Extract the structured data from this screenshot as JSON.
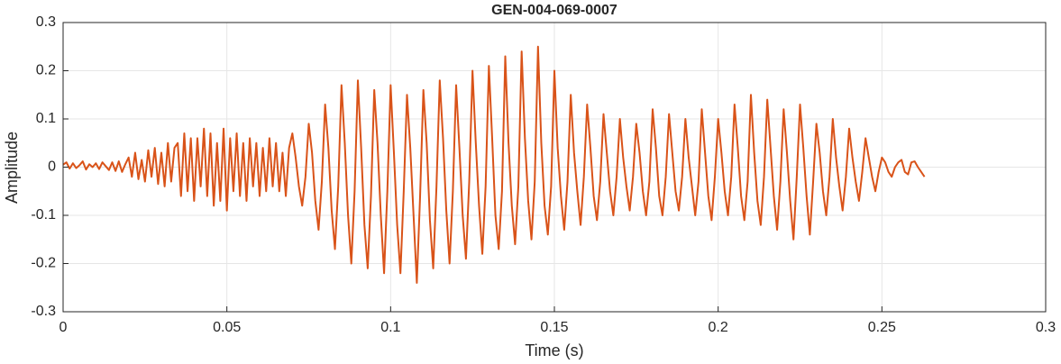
{
  "chart_data": {
    "type": "line",
    "title": "GEN-004-069-0007",
    "xlabel": "Time (s)",
    "ylabel": "Amplitude",
    "xlim": [
      0,
      0.3
    ],
    "xticks": [
      0,
      0.05,
      0.1,
      0.15,
      0.2,
      0.25,
      0.3
    ],
    "ylim": [
      -0.3,
      0.3
    ],
    "yticks": [
      -0.3,
      -0.2,
      -0.1,
      0,
      0.1,
      0.2,
      0.3
    ],
    "grid": true,
    "series": [
      {
        "color": "#d95319",
        "x": [
          0,
          0.001,
          0.002,
          0.003,
          0.004,
          0.005,
          0.006,
          0.007,
          0.008,
          0.009,
          0.01,
          0.011,
          0.012,
          0.013,
          0.014,
          0.015,
          0.016,
          0.017,
          0.018,
          0.019,
          0.02,
          0.021,
          0.022,
          0.023,
          0.024,
          0.025,
          0.026,
          0.027,
          0.028,
          0.029,
          0.03,
          0.031,
          0.032,
          0.033,
          0.034,
          0.035,
          0.036,
          0.037,
          0.038,
          0.039,
          0.04,
          0.041,
          0.042,
          0.043,
          0.044,
          0.045,
          0.046,
          0.047,
          0.048,
          0.049,
          0.05,
          0.051,
          0.052,
          0.053,
          0.054,
          0.055,
          0.056,
          0.057,
          0.058,
          0.059,
          0.06,
          0.061,
          0.062,
          0.063,
          0.064,
          0.065,
          0.066,
          0.067,
          0.068,
          0.069,
          0.07,
          0.071,
          0.072,
          0.073,
          0.074,
          0.075,
          0.076,
          0.077,
          0.078,
          0.079,
          0.08,
          0.081,
          0.082,
          0.083,
          0.084,
          0.085,
          0.086,
          0.087,
          0.088,
          0.089,
          0.09,
          0.091,
          0.092,
          0.093,
          0.094,
          0.095,
          0.096,
          0.097,
          0.098,
          0.099,
          0.1,
          0.101,
          0.102,
          0.103,
          0.104,
          0.105,
          0.106,
          0.107,
          0.108,
          0.109,
          0.11,
          0.111,
          0.112,
          0.113,
          0.114,
          0.115,
          0.116,
          0.117,
          0.118,
          0.119,
          0.12,
          0.121,
          0.122,
          0.123,
          0.124,
          0.125,
          0.126,
          0.127,
          0.128,
          0.129,
          0.13,
          0.131,
          0.132,
          0.133,
          0.134,
          0.135,
          0.136,
          0.137,
          0.138,
          0.139,
          0.14,
          0.141,
          0.142,
          0.143,
          0.144,
          0.145,
          0.146,
          0.147,
          0.148,
          0.149,
          0.15,
          0.151,
          0.152,
          0.153,
          0.154,
          0.155,
          0.156,
          0.157,
          0.158,
          0.159,
          0.16,
          0.161,
          0.162,
          0.163,
          0.164,
          0.165,
          0.166,
          0.167,
          0.168,
          0.169,
          0.17,
          0.171,
          0.172,
          0.173,
          0.174,
          0.175,
          0.176,
          0.177,
          0.178,
          0.179,
          0.18,
          0.181,
          0.182,
          0.183,
          0.184,
          0.185,
          0.186,
          0.187,
          0.188,
          0.189,
          0.19,
          0.191,
          0.192,
          0.193,
          0.194,
          0.195,
          0.196,
          0.197,
          0.198,
          0.199,
          0.2,
          0.201,
          0.202,
          0.203,
          0.204,
          0.205,
          0.206,
          0.207,
          0.208,
          0.209,
          0.21,
          0.211,
          0.212,
          0.213,
          0.214,
          0.215,
          0.216,
          0.217,
          0.218,
          0.219,
          0.22,
          0.221,
          0.222,
          0.223,
          0.224,
          0.225,
          0.226,
          0.227,
          0.228,
          0.229,
          0.23,
          0.231,
          0.232,
          0.233,
          0.234,
          0.235,
          0.236,
          0.237,
          0.238,
          0.239,
          0.24,
          0.241,
          0.242,
          0.243,
          0.244,
          0.245,
          0.246,
          0.247,
          0.248,
          0.249,
          0.25,
          0.251,
          0.252,
          0.253,
          0.254,
          0.255,
          0.256,
          0.257,
          0.258,
          0.259,
          0.26,
          0.261,
          0.262,
          0.263
        ],
        "values": [
          0.005,
          0.01,
          -0.003,
          0.008,
          -0.002,
          0.004,
          0.012,
          -0.005,
          0.006,
          0.0,
          0.008,
          -0.004,
          0.01,
          0.002,
          -0.006,
          0.01,
          -0.008,
          0.012,
          -0.01,
          0.006,
          0.02,
          -0.02,
          0.03,
          -0.025,
          0.015,
          -0.03,
          0.035,
          -0.02,
          0.04,
          -0.035,
          0.03,
          -0.04,
          0.05,
          -0.03,
          0.04,
          0.05,
          -0.06,
          0.07,
          -0.05,
          0.06,
          -0.07,
          0.06,
          -0.04,
          0.08,
          -0.06,
          0.07,
          -0.08,
          0.05,
          -0.07,
          0.08,
          -0.09,
          0.06,
          -0.05,
          0.07,
          -0.06,
          0.05,
          -0.07,
          0.06,
          -0.04,
          0.05,
          -0.06,
          0.04,
          -0.05,
          0.06,
          -0.04,
          0.05,
          -0.05,
          0.03,
          -0.06,
          0.04,
          0.07,
          0.02,
          -0.04,
          -0.08,
          -0.02,
          0.09,
          0.03,
          -0.07,
          -0.13,
          -0.03,
          0.13,
          0.04,
          -0.09,
          -0.17,
          -0.04,
          0.17,
          0.05,
          -0.1,
          -0.2,
          -0.05,
          0.18,
          0.04,
          -0.12,
          -0.21,
          -0.06,
          0.16,
          0.05,
          -0.1,
          -0.22,
          -0.05,
          0.17,
          0.03,
          -0.12,
          -0.22,
          -0.05,
          0.15,
          0.04,
          -0.1,
          -0.24,
          -0.06,
          0.16,
          0.05,
          -0.11,
          -0.21,
          -0.04,
          0.18,
          0.06,
          -0.09,
          -0.2,
          -0.05,
          0.17,
          0.04,
          -0.1,
          -0.19,
          -0.03,
          0.2,
          0.05,
          -0.08,
          -0.18,
          -0.04,
          0.21,
          0.06,
          -0.1,
          -0.17,
          -0.05,
          0.23,
          0.05,
          -0.08,
          -0.16,
          -0.04,
          0.24,
          0.06,
          -0.07,
          -0.15,
          -0.03,
          0.25,
          0.05,
          -0.08,
          -0.14,
          -0.04,
          0.2,
          0.04,
          -0.06,
          -0.13,
          -0.03,
          0.15,
          0.03,
          -0.05,
          -0.12,
          -0.02,
          0.13,
          0.04,
          -0.06,
          -0.11,
          -0.03,
          0.11,
          0.03,
          -0.05,
          -0.1,
          -0.02,
          0.1,
          0.02,
          -0.04,
          -0.09,
          -0.02,
          0.09,
          0.03,
          -0.05,
          -0.1,
          -0.03,
          0.12,
          0.04,
          -0.06,
          -0.1,
          -0.02,
          0.11,
          0.03,
          -0.05,
          -0.09,
          -0.02,
          0.1,
          0.02,
          -0.04,
          -0.1,
          -0.03,
          0.12,
          0.03,
          -0.06,
          -0.11,
          -0.02,
          0.1,
          0.03,
          -0.05,
          -0.1,
          -0.02,
          0.13,
          0.04,
          -0.06,
          -0.11,
          -0.03,
          0.15,
          0.03,
          -0.07,
          -0.12,
          -0.02,
          0.14,
          0.04,
          -0.06,
          -0.13,
          -0.03,
          0.12,
          0.03,
          -0.07,
          -0.15,
          -0.02,
          0.13,
          0.04,
          -0.06,
          -0.14,
          -0.03,
          0.09,
          0.03,
          -0.05,
          -0.1,
          -0.02,
          0.1,
          0.02,
          -0.04,
          -0.09,
          -0.02,
          0.08,
          0.02,
          -0.03,
          -0.07,
          -0.01,
          0.06,
          0.02,
          -0.02,
          -0.05,
          -0.01,
          0.02,
          0.01,
          -0.01,
          -0.02,
          0.0,
          0.01,
          0.015,
          -0.01,
          -0.015,
          0.01,
          0.012,
          0.0,
          -0.01,
          -0.02
        ]
      }
    ]
  }
}
